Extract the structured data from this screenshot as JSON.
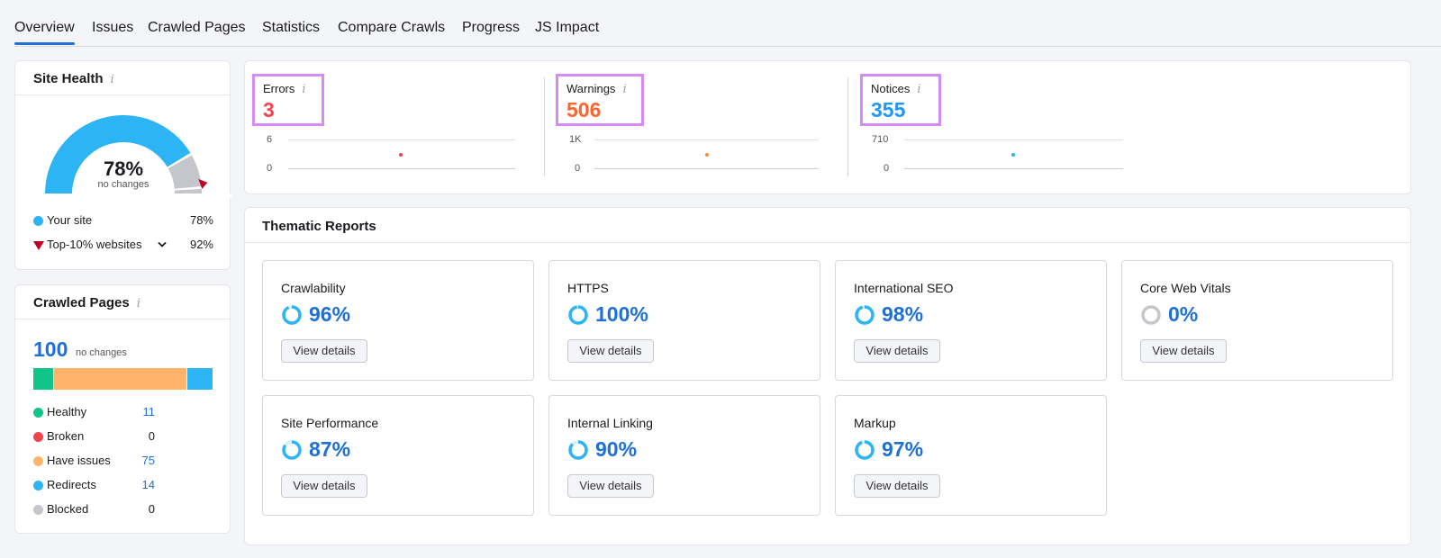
{
  "tabs": [
    "Overview",
    "Issues",
    "Crawled Pages",
    "Statistics",
    "Compare Crawls",
    "Progress",
    "JS Impact"
  ],
  "site_health": {
    "title": "Site Health",
    "info_glyph": "i",
    "percent": "78%",
    "change": "no changes",
    "gauge_fraction": 0.78,
    "top10_fraction": 0.92,
    "legend": [
      {
        "label": "Your site",
        "value": "78%",
        "color": "#2cb4f5"
      },
      {
        "label": "Top-10% websites",
        "value": "92%",
        "color": "#c00020"
      }
    ]
  },
  "crawled_pages": {
    "title": "Crawled Pages",
    "info_glyph": "i",
    "count": "100",
    "change": "no changes",
    "bar": [
      {
        "value": 11,
        "color": "#10c48a"
      },
      {
        "value": 75,
        "color": "#ffb36b"
      },
      {
        "value": 14,
        "color": "#2cb4f5"
      }
    ],
    "rows": [
      {
        "label": "Healthy",
        "value": "11",
        "color": "#10c48a",
        "link": true
      },
      {
        "label": "Broken",
        "value": "0",
        "color": "#f2434f",
        "link": false
      },
      {
        "label": "Have issues",
        "value": "75",
        "color": "#ffb36b",
        "link": true
      },
      {
        "label": "Redirects",
        "value": "14",
        "color": "#2cb4f5",
        "link": true
      },
      {
        "label": "Blocked",
        "value": "0",
        "color": "#c4c6cc",
        "link": false
      }
    ]
  },
  "metrics": [
    {
      "label": "Errors",
      "value": "3",
      "color": "#f2434f",
      "ymax": "6",
      "ymin": "0"
    },
    {
      "label": "Warnings",
      "value": "506",
      "color": "#ff642d",
      "ymax": "1K",
      "ymin": "0"
    },
    {
      "label": "Notices",
      "value": "355",
      "color": "#2196f3",
      "ymax": "710",
      "ymin": "0"
    }
  ],
  "thematic": {
    "title": "Thematic Reports",
    "button_label": "View details",
    "ring_color": "#2cb4f5",
    "ring_empty_color": "#c4c6cc",
    "reports": [
      {
        "name": "Crawlability",
        "percent": "96%",
        "fraction": 0.96
      },
      {
        "name": "HTTPS",
        "percent": "100%",
        "fraction": 1.0
      },
      {
        "name": "International SEO",
        "percent": "98%",
        "fraction": 0.98
      },
      {
        "name": "Core Web Vitals",
        "percent": "0%",
        "fraction": 0.0
      },
      {
        "name": "Site Performance",
        "percent": "87%",
        "fraction": 0.87
      },
      {
        "name": "Internal Linking",
        "percent": "90%",
        "fraction": 0.9
      },
      {
        "name": "Markup",
        "percent": "97%",
        "fraction": 0.97
      }
    ]
  }
}
